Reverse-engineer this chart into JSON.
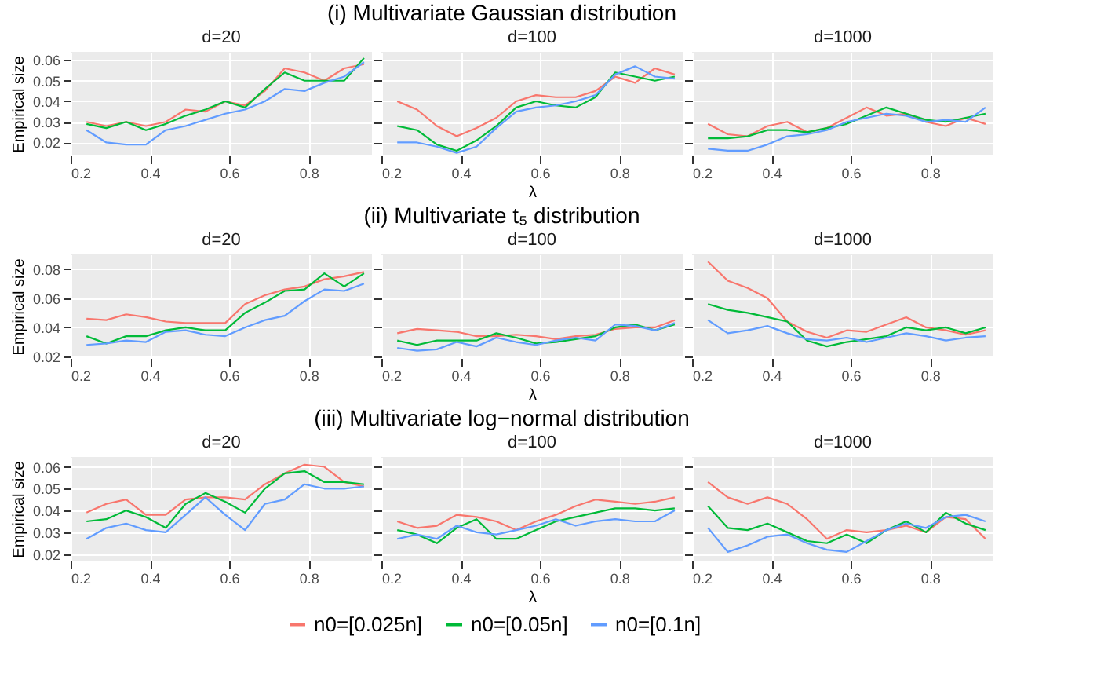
{
  "chart_data": [
    {
      "type": "line",
      "title": "d=20",
      "annotations": [
        "(i) Multivariate Gaussian distribution"
      ],
      "ylabel": "Empirical size",
      "x": [
        0.24,
        0.29,
        0.34,
        0.39,
        0.44,
        0.49,
        0.54,
        0.59,
        0.64,
        0.69,
        0.74,
        0.79,
        0.84,
        0.89,
        0.94
      ],
      "xlim": [
        0.2,
        0.96
      ],
      "xticks": [
        0.2,
        0.4,
        0.6,
        0.8
      ],
      "ylim": [
        0.0137,
        0.064
      ],
      "yticks": [
        0.02,
        0.03,
        0.04,
        0.05,
        0.06
      ],
      "grid": true,
      "legend": false,
      "series": [
        {
          "color": "#f8766d",
          "values": [
            0.03,
            0.028,
            0.03,
            0.028,
            0.03,
            0.036,
            0.035,
            0.04,
            0.038,
            0.045,
            0.056,
            0.054,
            0.05,
            0.056,
            0.058
          ]
        },
        {
          "color": "#00ba38",
          "values": [
            0.029,
            0.027,
            0.03,
            0.026,
            0.029,
            0.033,
            0.036,
            0.04,
            0.037,
            0.046,
            0.054,
            0.05,
            0.05,
            0.05,
            0.061
          ]
        },
        {
          "color": "#619cff",
          "values": [
            0.026,
            0.02,
            0.019,
            0.019,
            0.026,
            0.028,
            0.031,
            0.034,
            0.036,
            0.04,
            0.046,
            0.045,
            0.049,
            0.052,
            0.059
          ]
        }
      ]
    },
    {
      "type": "line",
      "title": "d=100",
      "xlabel": "λ",
      "x": [
        0.24,
        0.29,
        0.34,
        0.39,
        0.44,
        0.49,
        0.54,
        0.59,
        0.64,
        0.69,
        0.74,
        0.79,
        0.84,
        0.89,
        0.94
      ],
      "xlim": [
        0.2,
        0.96
      ],
      "xticks": [
        0.2,
        0.4,
        0.6,
        0.8
      ],
      "ylim": [
        0.0137,
        0.064
      ],
      "yticks": [
        0.02,
        0.03,
        0.04,
        0.05,
        0.06
      ],
      "tick_labels": "x",
      "grid": true,
      "legend": false,
      "series": [
        {
          "color": "#f8766d",
          "values": [
            0.04,
            0.036,
            0.028,
            0.023,
            0.027,
            0.032,
            0.04,
            0.043,
            0.042,
            0.042,
            0.045,
            0.052,
            0.049,
            0.056,
            0.053
          ]
        },
        {
          "color": "#00ba38",
          "values": [
            0.028,
            0.026,
            0.019,
            0.016,
            0.021,
            0.028,
            0.037,
            0.04,
            0.038,
            0.037,
            0.042,
            0.054,
            0.052,
            0.05,
            0.052
          ]
        },
        {
          "color": "#619cff",
          "values": [
            0.02,
            0.02,
            0.018,
            0.015,
            0.018,
            0.027,
            0.035,
            0.037,
            0.038,
            0.04,
            0.043,
            0.053,
            0.057,
            0.052,
            0.051
          ]
        }
      ]
    },
    {
      "type": "line",
      "title": "d=1000",
      "x": [
        0.24,
        0.29,
        0.34,
        0.39,
        0.44,
        0.49,
        0.54,
        0.59,
        0.64,
        0.69,
        0.74,
        0.79,
        0.84,
        0.89,
        0.94
      ],
      "xlim": [
        0.2,
        0.96
      ],
      "xticks": [
        0.2,
        0.4,
        0.6,
        0.8
      ],
      "ylim": [
        0.0137,
        0.064
      ],
      "yticks": [
        0.02,
        0.03,
        0.04,
        0.05,
        0.06
      ],
      "tick_labels": "x",
      "grid": true,
      "legend": false,
      "series": [
        {
          "color": "#f8766d",
          "values": [
            0.029,
            0.024,
            0.023,
            0.028,
            0.03,
            0.025,
            0.027,
            0.032,
            0.037,
            0.033,
            0.034,
            0.03,
            0.028,
            0.032,
            0.029
          ]
        },
        {
          "color": "#00ba38",
          "values": [
            0.022,
            0.022,
            0.023,
            0.026,
            0.026,
            0.025,
            0.027,
            0.029,
            0.033,
            0.037,
            0.034,
            0.031,
            0.03,
            0.032,
            0.034
          ]
        },
        {
          "color": "#619cff",
          "values": [
            0.017,
            0.016,
            0.016,
            0.019,
            0.023,
            0.024,
            0.026,
            0.03,
            0.032,
            0.034,
            0.033,
            0.03,
            0.031,
            0.03,
            0.037
          ]
        }
      ]
    },
    {
      "type": "line",
      "title": "d=20",
      "annotations": [
        "(ii) Multivariate t₅ distribution"
      ],
      "ylabel": "Empirical size",
      "x": [
        0.24,
        0.29,
        0.34,
        0.39,
        0.44,
        0.49,
        0.54,
        0.59,
        0.64,
        0.69,
        0.74,
        0.79,
        0.84,
        0.89,
        0.94
      ],
      "xlim": [
        0.2,
        0.96
      ],
      "xticks": [
        0.2,
        0.4,
        0.6,
        0.8
      ],
      "ylim": [
        0.019,
        0.09
      ],
      "yticks": [
        0.02,
        0.04,
        0.06,
        0.08
      ],
      "grid": true,
      "legend": false,
      "series": [
        {
          "color": "#f8766d",
          "values": [
            0.046,
            0.045,
            0.049,
            0.047,
            0.044,
            0.043,
            0.043,
            0.043,
            0.056,
            0.062,
            0.066,
            0.068,
            0.073,
            0.075,
            0.078
          ]
        },
        {
          "color": "#00ba38",
          "values": [
            0.034,
            0.029,
            0.034,
            0.034,
            0.038,
            0.04,
            0.038,
            0.038,
            0.05,
            0.057,
            0.065,
            0.066,
            0.077,
            0.068,
            0.077
          ]
        },
        {
          "color": "#619cff",
          "values": [
            0.028,
            0.029,
            0.031,
            0.03,
            0.037,
            0.038,
            0.035,
            0.034,
            0.04,
            0.045,
            0.048,
            0.058,
            0.066,
            0.065,
            0.07
          ]
        }
      ]
    },
    {
      "type": "line",
      "title": "d=100",
      "xlabel": "λ",
      "x": [
        0.24,
        0.29,
        0.34,
        0.39,
        0.44,
        0.49,
        0.54,
        0.59,
        0.64,
        0.69,
        0.74,
        0.79,
        0.84,
        0.89,
        0.94
      ],
      "xlim": [
        0.2,
        0.96
      ],
      "xticks": [
        0.2,
        0.4,
        0.6,
        0.8
      ],
      "ylim": [
        0.019,
        0.09
      ],
      "yticks": [
        0.02,
        0.04,
        0.06,
        0.08
      ],
      "tick_labels": "x",
      "grid": true,
      "legend": false,
      "series": [
        {
          "color": "#f8766d",
          "values": [
            0.036,
            0.039,
            0.038,
            0.037,
            0.034,
            0.034,
            0.035,
            0.034,
            0.032,
            0.034,
            0.035,
            0.039,
            0.04,
            0.04,
            0.045
          ]
        },
        {
          "color": "#00ba38",
          "values": [
            0.031,
            0.028,
            0.031,
            0.031,
            0.031,
            0.036,
            0.033,
            0.029,
            0.03,
            0.032,
            0.034,
            0.04,
            0.042,
            0.038,
            0.042
          ]
        },
        {
          "color": "#619cff",
          "values": [
            0.026,
            0.024,
            0.025,
            0.03,
            0.027,
            0.033,
            0.03,
            0.028,
            0.031,
            0.033,
            0.031,
            0.042,
            0.041,
            0.038,
            0.043
          ]
        }
      ]
    },
    {
      "type": "line",
      "title": "d=1000",
      "x": [
        0.24,
        0.29,
        0.34,
        0.39,
        0.44,
        0.49,
        0.54,
        0.59,
        0.64,
        0.69,
        0.74,
        0.79,
        0.84,
        0.89,
        0.94
      ],
      "xlim": [
        0.2,
        0.96
      ],
      "xticks": [
        0.2,
        0.4,
        0.6,
        0.8
      ],
      "ylim": [
        0.019,
        0.09
      ],
      "yticks": [
        0.02,
        0.04,
        0.06,
        0.08
      ],
      "tick_labels": "x",
      "grid": true,
      "legend": false,
      "series": [
        {
          "color": "#f8766d",
          "values": [
            0.085,
            0.072,
            0.067,
            0.06,
            0.044,
            0.037,
            0.033,
            0.038,
            0.037,
            0.042,
            0.047,
            0.04,
            0.038,
            0.035,
            0.038
          ]
        },
        {
          "color": "#00ba38",
          "values": [
            0.056,
            0.052,
            0.05,
            0.047,
            0.044,
            0.031,
            0.027,
            0.03,
            0.032,
            0.034,
            0.04,
            0.038,
            0.04,
            0.036,
            0.04
          ]
        },
        {
          "color": "#619cff",
          "values": [
            0.045,
            0.036,
            0.038,
            0.041,
            0.036,
            0.032,
            0.031,
            0.033,
            0.03,
            0.033,
            0.036,
            0.034,
            0.031,
            0.033,
            0.034
          ]
        }
      ]
    },
    {
      "type": "line",
      "title": "d=20",
      "annotations": [
        "(iii) Multivariate log−normal distribution"
      ],
      "ylabel": "Empirical size",
      "x": [
        0.24,
        0.29,
        0.34,
        0.39,
        0.44,
        0.49,
        0.54,
        0.59,
        0.64,
        0.69,
        0.74,
        0.79,
        0.84,
        0.89,
        0.94
      ],
      "xlim": [
        0.2,
        0.96
      ],
      "xticks": [
        0.2,
        0.4,
        0.6,
        0.8
      ],
      "ylim": [
        0.017,
        0.0645
      ],
      "yticks": [
        0.02,
        0.03,
        0.04,
        0.05,
        0.06
      ],
      "grid": true,
      "legend": false,
      "series": [
        {
          "color": "#f8766d",
          "values": [
            0.039,
            0.043,
            0.045,
            0.038,
            0.038,
            0.045,
            0.046,
            0.046,
            0.045,
            0.052,
            0.057,
            0.061,
            0.06,
            0.053,
            0.051
          ]
        },
        {
          "color": "#00ba38",
          "values": [
            0.035,
            0.036,
            0.04,
            0.037,
            0.032,
            0.043,
            0.048,
            0.044,
            0.039,
            0.05,
            0.057,
            0.058,
            0.053,
            0.053,
            0.052
          ]
        },
        {
          "color": "#619cff",
          "values": [
            0.027,
            0.032,
            0.034,
            0.031,
            0.03,
            0.038,
            0.046,
            0.038,
            0.031,
            0.043,
            0.045,
            0.052,
            0.05,
            0.05,
            0.051
          ]
        }
      ]
    },
    {
      "type": "line",
      "title": "d=100",
      "xlabel": "λ",
      "x": [
        0.24,
        0.29,
        0.34,
        0.39,
        0.44,
        0.49,
        0.54,
        0.59,
        0.64,
        0.69,
        0.74,
        0.79,
        0.84,
        0.89,
        0.94
      ],
      "xlim": [
        0.2,
        0.96
      ],
      "xticks": [
        0.2,
        0.4,
        0.6,
        0.8
      ],
      "ylim": [
        0.017,
        0.0645
      ],
      "yticks": [
        0.02,
        0.03,
        0.04,
        0.05,
        0.06
      ],
      "tick_labels": "x",
      "grid": true,
      "legend": "bottom",
      "series": [
        {
          "name": "n0=[0.025n]",
          "color": "#f8766d",
          "values": [
            0.035,
            0.032,
            0.033,
            0.038,
            0.037,
            0.035,
            0.031,
            0.035,
            0.038,
            0.042,
            0.045,
            0.044,
            0.043,
            0.044,
            0.046
          ]
        },
        {
          "name": "n0=[0.05n]",
          "color": "#00ba38",
          "values": [
            0.031,
            0.029,
            0.025,
            0.032,
            0.036,
            0.027,
            0.027,
            0.031,
            0.035,
            0.037,
            0.039,
            0.041,
            0.041,
            0.04,
            0.041
          ]
        },
        {
          "name": "n0=[0.1n]",
          "color": "#619cff",
          "values": [
            0.027,
            0.029,
            0.027,
            0.033,
            0.03,
            0.029,
            0.031,
            0.033,
            0.036,
            0.033,
            0.035,
            0.036,
            0.035,
            0.035,
            0.04
          ]
        }
      ]
    },
    {
      "type": "line",
      "title": "d=1000",
      "x": [
        0.24,
        0.29,
        0.34,
        0.39,
        0.44,
        0.49,
        0.54,
        0.59,
        0.64,
        0.69,
        0.74,
        0.79,
        0.84,
        0.89,
        0.94
      ],
      "xlim": [
        0.2,
        0.96
      ],
      "xticks": [
        0.2,
        0.4,
        0.6,
        0.8
      ],
      "ylim": [
        0.017,
        0.0645
      ],
      "yticks": [
        0.02,
        0.03,
        0.04,
        0.05,
        0.06
      ],
      "tick_labels": "x",
      "grid": true,
      "legend": false,
      "series": [
        {
          "color": "#f8766d",
          "values": [
            0.053,
            0.046,
            0.043,
            0.046,
            0.043,
            0.036,
            0.027,
            0.031,
            0.03,
            0.031,
            0.033,
            0.03,
            0.037,
            0.036,
            0.027
          ]
        },
        {
          "color": "#00ba38",
          "values": [
            0.042,
            0.032,
            0.031,
            0.034,
            0.03,
            0.026,
            0.025,
            0.029,
            0.025,
            0.031,
            0.035,
            0.03,
            0.039,
            0.034,
            0.031
          ]
        },
        {
          "color": "#619cff",
          "values": [
            0.032,
            0.021,
            0.024,
            0.028,
            0.029,
            0.025,
            0.022,
            0.021,
            0.026,
            0.031,
            0.034,
            0.032,
            0.037,
            0.038,
            0.035
          ]
        }
      ]
    }
  ]
}
